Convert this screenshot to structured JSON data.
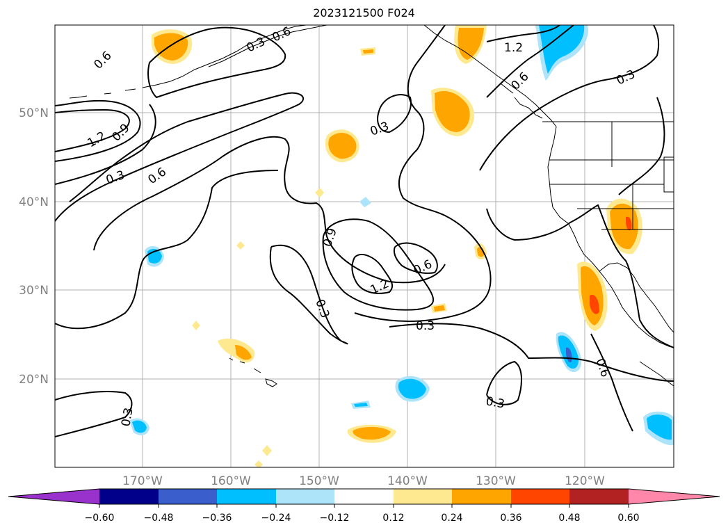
{
  "title": "2023121500 F024",
  "map": {
    "lat_labels": [
      "50°N",
      "40°N",
      "30°N",
      "20°N"
    ],
    "lon_labels": [
      "170°W",
      "160°W",
      "150°W",
      "140°W",
      "130°W",
      "120°W"
    ],
    "contour_labels": [
      "0.6",
      "1.2",
      "0.9",
      "0.3",
      "0.6",
      "0.3",
      "0.3",
      "0.6",
      "1.2",
      "0.6",
      "0.3",
      "0.9",
      "0.6",
      "1.2",
      "0.3",
      "0.3",
      "0.3",
      "0.6",
      "0.3"
    ],
    "label_color": "#808080",
    "grid": true
  },
  "colorbar": {
    "ticks": [
      "−0.60",
      "−0.48",
      "−0.36",
      "−0.24",
      "−0.12",
      "0.12",
      "0.24",
      "0.36",
      "0.48",
      "0.60"
    ],
    "colors": [
      "#9932cc",
      "#00008b",
      "#3a5fcd",
      "#00bfff",
      "#aee4fa",
      "#ffffff",
      "#ffe990",
      "#ffa500",
      "#ff4500",
      "#b22222",
      "#ff88aa"
    ]
  }
}
